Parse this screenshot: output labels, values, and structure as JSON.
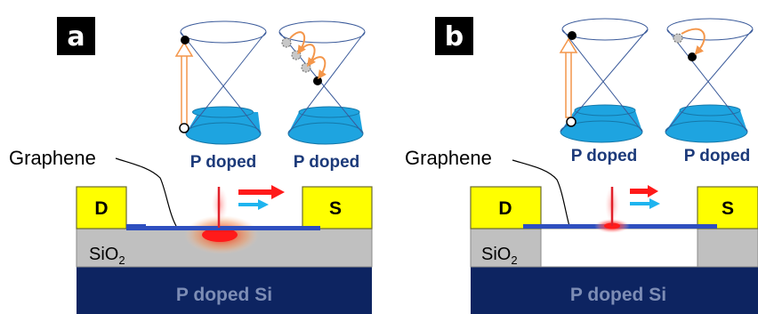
{
  "panels": [
    {
      "tag": "a",
      "graphene_label": "Graphene",
      "drain_label": "D",
      "source_label": "S",
      "oxide_label": "SiO",
      "oxide_subscript": "2",
      "substrate_label": "P doped Si",
      "cone_labels": [
        "P doped",
        "P doped"
      ]
    },
    {
      "tag": "b",
      "graphene_label": "Graphene",
      "drain_label": "D",
      "source_label": "S",
      "oxide_label": "SiO",
      "oxide_subscript": "2",
      "substrate_label": "P doped Si",
      "cone_labels": [
        "P doped",
        "P doped"
      ]
    }
  ],
  "colors": {
    "contact_yellow": "#ffff00",
    "oxide_gray": "#c0c0c0",
    "substrate_navy": "#0d2461",
    "graphene_blue": "#2e4fbf",
    "cone_fill": "#1ea4e0",
    "arrow_red": "#ff1a1a",
    "arrow_cyan": "#1eb4ef",
    "excitation_orange": "#f4964a",
    "label_navy": "#1c3a7a"
  }
}
